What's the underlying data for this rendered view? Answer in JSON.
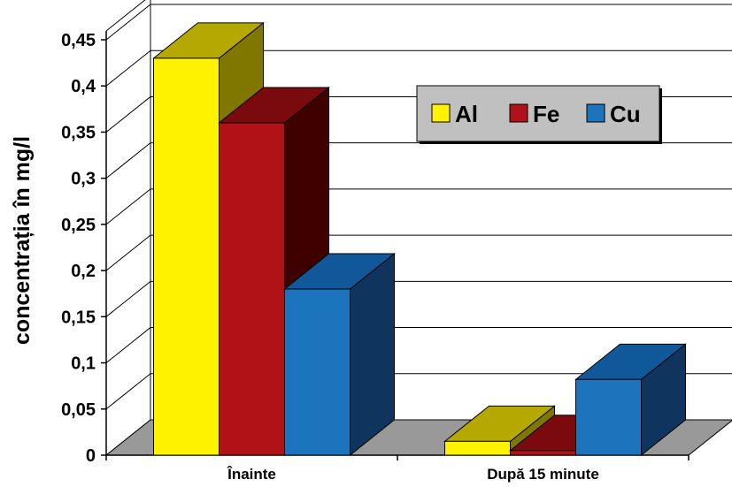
{
  "chart_data": {
    "type": "bar",
    "ylabel": "concentrația în mg/l",
    "ylim": [
      0,
      0.45
    ],
    "ytick_labels": [
      "0",
      "0,05",
      "0,1",
      "0,15",
      "0,2",
      "0,25",
      "0,3",
      "0,35",
      "0,4",
      "0,45"
    ],
    "categories": [
      "Înainte",
      "După 15 minute"
    ],
    "series": [
      {
        "name": "Al",
        "values": [
          0.43,
          0.015
        ],
        "color": "#FFF200",
        "top_color": "#B5A800",
        "side_color": "#7F7700"
      },
      {
        "name": "Fe",
        "values": [
          0.36,
          0.005
        ],
        "color": "#B01218",
        "top_color": "#7A0A0E",
        "side_color": "#3F0000"
      },
      {
        "name": "Cu",
        "values": [
          0.18,
          0.082
        ],
        "color": "#1C75BC",
        "top_color": "#10589A",
        "side_color": "#0F355E"
      }
    ],
    "legend_position": "top-right",
    "grid": true,
    "style": "3d-clustered-column"
  }
}
